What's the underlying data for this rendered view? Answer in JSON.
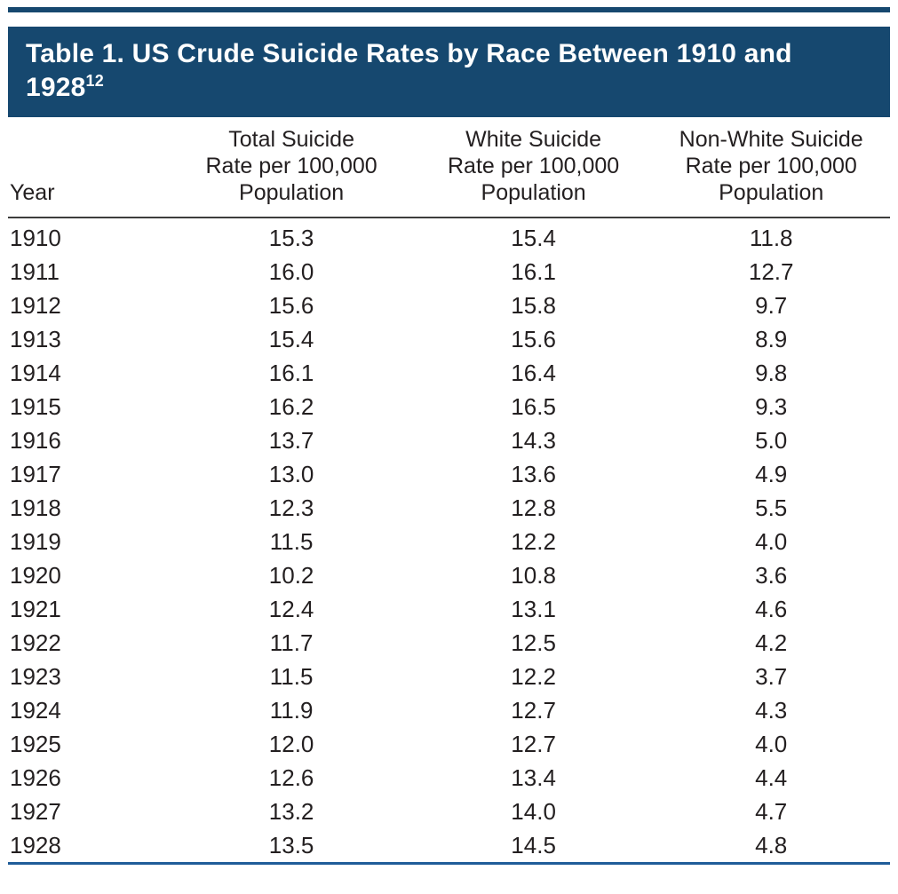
{
  "title": {
    "line1": "Table 1. US Crude Suicide Rates by Race Between 1910 and",
    "line2": "1928",
    "superscript": "12"
  },
  "colors": {
    "band": "#16486f",
    "header_rule": "#3d3d3c",
    "bottom_rule": "#1f5c99",
    "text": "#231f20"
  },
  "table": {
    "columns": [
      {
        "key": "year",
        "label": "Year"
      },
      {
        "key": "total",
        "label": "Total Suicide\nRate per 100,000\nPopulation"
      },
      {
        "key": "white",
        "label": "White Suicide\nRate per 100,000\nPopulation"
      },
      {
        "key": "nonwhite",
        "label": "Non-White Suicide\nRate per 100,000\nPopulation"
      }
    ],
    "rows": [
      {
        "year": "1910",
        "total": "15.3",
        "white": "15.4",
        "nonwhite": "11.8"
      },
      {
        "year": "1911",
        "total": "16.0",
        "white": "16.1",
        "nonwhite": "12.7"
      },
      {
        "year": "1912",
        "total": "15.6",
        "white": "15.8",
        "nonwhite": "9.7"
      },
      {
        "year": "1913",
        "total": "15.4",
        "white": "15.6",
        "nonwhite": "8.9"
      },
      {
        "year": "1914",
        "total": "16.1",
        "white": "16.4",
        "nonwhite": "9.8"
      },
      {
        "year": "1915",
        "total": "16.2",
        "white": "16.5",
        "nonwhite": "9.3"
      },
      {
        "year": "1916",
        "total": "13.7",
        "white": "14.3",
        "nonwhite": "5.0"
      },
      {
        "year": "1917",
        "total": "13.0",
        "white": "13.6",
        "nonwhite": "4.9"
      },
      {
        "year": "1918",
        "total": "12.3",
        "white": "12.8",
        "nonwhite": "5.5"
      },
      {
        "year": "1919",
        "total": "11.5",
        "white": "12.2",
        "nonwhite": "4.0"
      },
      {
        "year": "1920",
        "total": "10.2",
        "white": "10.8",
        "nonwhite": "3.6"
      },
      {
        "year": "1921",
        "total": "12.4",
        "white": "13.1",
        "nonwhite": "4.6"
      },
      {
        "year": "1922",
        "total": "11.7",
        "white": "12.5",
        "nonwhite": "4.2"
      },
      {
        "year": "1923",
        "total": "11.5",
        "white": "12.2",
        "nonwhite": "3.7"
      },
      {
        "year": "1924",
        "total": "11.9",
        "white": "12.7",
        "nonwhite": "4.3"
      },
      {
        "year": "1925",
        "total": "12.0",
        "white": "12.7",
        "nonwhite": "4.0"
      },
      {
        "year": "1926",
        "total": "12.6",
        "white": "13.4",
        "nonwhite": "4.4"
      },
      {
        "year": "1927",
        "total": "13.2",
        "white": "14.0",
        "nonwhite": "4.7"
      },
      {
        "year": "1928",
        "total": "13.5",
        "white": "14.5",
        "nonwhite": "4.8"
      }
    ]
  },
  "chart_data": {
    "type": "table",
    "title": "Table 1. US Crude Suicide Rates by Race Between 1910 and 1928",
    "title_reference_superscript": "12",
    "columns": [
      "Year",
      "Total Suicide Rate per 100,000 Population",
      "White Suicide Rate per 100,000 Population",
      "Non-White Suicide Rate per 100,000 Population"
    ],
    "x": [
      1910,
      1911,
      1912,
      1913,
      1914,
      1915,
      1916,
      1917,
      1918,
      1919,
      1920,
      1921,
      1922,
      1923,
      1924,
      1925,
      1926,
      1927,
      1928
    ],
    "series": [
      {
        "name": "Total Suicide Rate per 100,000 Population",
        "values": [
          15.3,
          16.0,
          15.6,
          15.4,
          16.1,
          16.2,
          13.7,
          13.0,
          12.3,
          11.5,
          10.2,
          12.4,
          11.7,
          11.5,
          11.9,
          12.0,
          12.6,
          13.2,
          13.5
        ]
      },
      {
        "name": "White Suicide Rate per 100,000 Population",
        "values": [
          15.4,
          16.1,
          15.8,
          15.6,
          16.4,
          16.5,
          14.3,
          13.6,
          12.8,
          12.2,
          10.8,
          13.1,
          12.5,
          12.2,
          12.7,
          12.7,
          13.4,
          14.0,
          14.5
        ]
      },
      {
        "name": "Non-White Suicide Rate per 100,000 Population",
        "values": [
          11.8,
          12.7,
          9.7,
          8.9,
          9.8,
          9.3,
          5.0,
          4.9,
          5.5,
          4.0,
          3.6,
          4.6,
          4.2,
          3.7,
          4.3,
          4.0,
          4.4,
          4.7,
          4.8
        ]
      }
    ]
  }
}
